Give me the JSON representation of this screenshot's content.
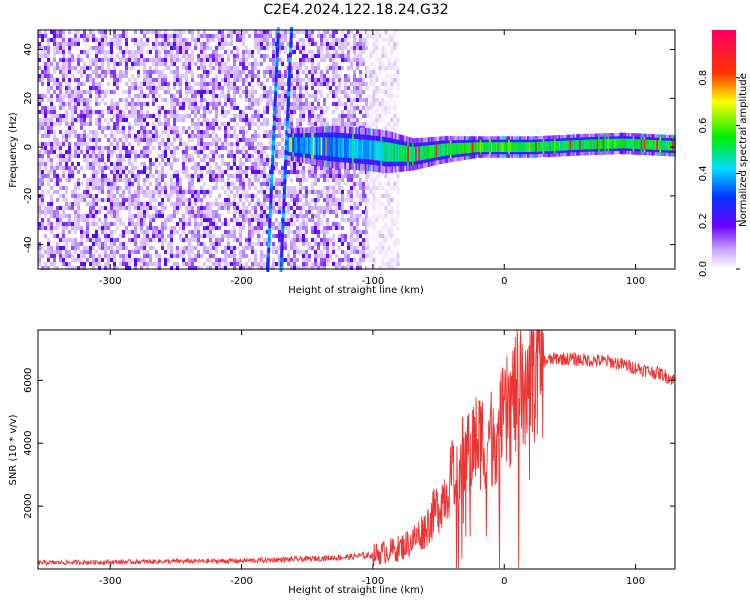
{
  "title": "C2E4.2024.122.18.24.G32",
  "colors": {
    "snr_line": "#ee3333",
    "frame": "#000000",
    "spectrogram_low": "#ffffff",
    "spectrogram_mid": "#6a00ff",
    "spectrogram_high": "#ff0066"
  },
  "chart_data": [
    {
      "type": "heatmap",
      "title": "",
      "xlabel": "Height of straight line (km)",
      "ylabel": "Frequency (Hz)",
      "xlim": [
        -355,
        130
      ],
      "ylim": [
        -50,
        48
      ],
      "xticks": [
        -300,
        -200,
        -100,
        0,
        100
      ],
      "yticks": [
        -40,
        -20,
        0,
        20,
        40
      ],
      "colorbar": {
        "label": "Normalized spectral amplitude",
        "range": [
          0,
          1
        ],
        "ticks": [
          "0.0",
          "0.2",
          "0.4",
          "0.6",
          "0.8"
        ],
        "tick_values": [
          0,
          0.2,
          0.4,
          0.6,
          0.8
        ]
      },
      "features": [
        {
          "kind": "noise",
          "x_range": [
            -355,
            -105
          ],
          "f_range": [
            -50,
            48
          ],
          "amplitude": 0.2
        },
        {
          "kind": "noise",
          "x_range": [
            -105,
            -80
          ],
          "f_range": [
            -50,
            48
          ],
          "amplitude": 0.06
        },
        {
          "kind": "streak",
          "x_start": -180,
          "f_start": -50,
          "x_end": -172,
          "f_end": 48,
          "amplitude": 0.3
        },
        {
          "kind": "streak",
          "x_start": -170,
          "f_start": -50,
          "x_end": -162,
          "f_end": 48,
          "amplitude": 0.3
        },
        {
          "kind": "signal_band",
          "points": [
            {
              "x": -165,
              "f": 1,
              "amp": 0.22,
              "w": 3
            },
            {
              "x": -130,
              "f": 0,
              "amp": 0.25,
              "w": 4
            },
            {
              "x": -105,
              "f": -1,
              "amp": 0.3,
              "w": 4
            },
            {
              "x": -90,
              "f": -2,
              "amp": 0.42,
              "w": 4
            },
            {
              "x": -70,
              "f": -3,
              "amp": 0.48,
              "w": 3
            },
            {
              "x": -45,
              "f": -1,
              "amp": 0.5,
              "w": 2.5
            },
            {
              "x": -20,
              "f": 0,
              "amp": 0.58,
              "w": 2
            },
            {
              "x": 20,
              "f": 0,
              "amp": 0.55,
              "w": 2
            },
            {
              "x": 60,
              "f": 1,
              "amp": 0.5,
              "w": 2
            },
            {
              "x": 90,
              "f": 1.5,
              "amp": 0.55,
              "w": 2
            },
            {
              "x": 130,
              "f": 0.5,
              "amp": 0.5,
              "w": 2
            }
          ]
        }
      ]
    },
    {
      "type": "line",
      "title": "",
      "xlabel": "Height of straight line (km)",
      "ylabel": "SNR (10 * v/v)",
      "xlim": [
        -355,
        130
      ],
      "ylim": [
        0,
        7600
      ],
      "xticks": [
        -300,
        -200,
        -100,
        0,
        100
      ],
      "yticks": [
        2000,
        4000,
        6000
      ],
      "series": [
        {
          "x": [
            -355,
            -300,
            -250,
            -200,
            -150,
            -120,
            -100,
            -80,
            -70,
            -60,
            -50,
            -40,
            -30,
            -20,
            -10,
            0,
            10,
            20,
            30,
            40,
            60,
            80,
            100,
            110,
            120,
            130
          ],
          "values": [
            200,
            220,
            240,
            260,
            320,
            380,
            450,
            650,
            900,
            1300,
            2000,
            2900,
            3600,
            4100,
            4200,
            4700,
            5700,
            6300,
            6600,
            6700,
            6650,
            6600,
            6400,
            6300,
            6200,
            6000
          ]
        }
      ]
    }
  ]
}
